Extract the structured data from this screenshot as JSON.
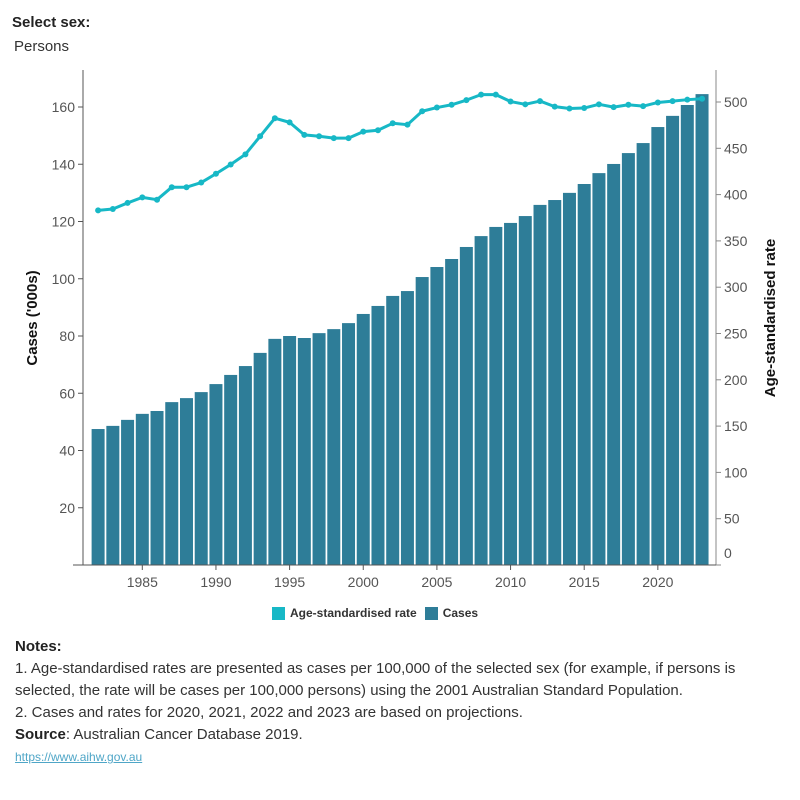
{
  "filter": {
    "label": "Select sex:",
    "value": "Persons"
  },
  "chart_data": {
    "type": "bar+line",
    "categories": [
      1982,
      1983,
      1984,
      1985,
      1986,
      1987,
      1988,
      1989,
      1990,
      1991,
      1992,
      1993,
      1994,
      1995,
      1996,
      1997,
      1998,
      1999,
      2000,
      2001,
      2002,
      2003,
      2004,
      2005,
      2006,
      2007,
      2008,
      2009,
      2010,
      2011,
      2012,
      2013,
      2014,
      2015,
      2016,
      2017,
      2018,
      2019,
      2020,
      2021,
      2022,
      2023
    ],
    "series": [
      {
        "name": "Cases",
        "type": "bar",
        "axis": "left",
        "color": "#2e7d98",
        "values": [
          47.5,
          48.6,
          50.7,
          52.8,
          53.8,
          56.9,
          58.3,
          60.4,
          63.2,
          66.4,
          69.5,
          74.1,
          79.0,
          80.0,
          79.3,
          81.0,
          82.4,
          84.5,
          87.7,
          90.5,
          94.0,
          95.7,
          100.6,
          104.1,
          106.9,
          111.1,
          114.9,
          118.1,
          119.5,
          121.9,
          125.8,
          127.5,
          130.0,
          133.1,
          136.9,
          140.1,
          143.9,
          147.4,
          153.0,
          156.9,
          160.7,
          164.5
        ]
      },
      {
        "name": "Age-standardised rate",
        "type": "line",
        "axis": "right",
        "color": "#17b8c6",
        "values": [
          383,
          384.5,
          391,
          397,
          394.5,
          408,
          408,
          413,
          422.5,
          432.5,
          443.5,
          463,
          482.5,
          478,
          464.5,
          463,
          461,
          461,
          468,
          469.5,
          477,
          475.5,
          490,
          494,
          497,
          502,
          508,
          508,
          500.5,
          497.5,
          501,
          495,
          493,
          493.5,
          497.5,
          494.5,
          497,
          495.5,
          499.5,
          501,
          502.5,
          503.5
        ]
      }
    ],
    "xlabel": "",
    "ylabel": "Cases ('000s)",
    "y2label": "Age-standardised rate",
    "xticks": [
      1985,
      1990,
      1995,
      2000,
      2005,
      2010,
      2015,
      2020
    ],
    "yticks": [
      20,
      40,
      60,
      80,
      100,
      120,
      140,
      160
    ],
    "y2ticks": [
      0,
      50,
      100,
      150,
      200,
      250,
      300,
      350,
      400,
      450,
      500
    ],
    "ylim": [
      0,
      172
    ],
    "y2lim": [
      0,
      533
    ],
    "grid": false,
    "legend": "bottom"
  },
  "legend": {
    "rate": "Age-standardised rate",
    "cases": "Cases"
  },
  "notes": {
    "title": "Notes:",
    "items": [
      "1. Age-standardised rates are presented as cases per 100,000 of the selected sex (for example, if persons is selected, the rate will be cases per 100,000 persons) using the 2001 Australian Standard Population.",
      "2. Cases and rates for 2020, 2021, 2022 and 2023 are based on projections."
    ],
    "source_label": "Source",
    "source_text": ": Australian Cancer Database 2019.",
    "link": "https://www.aihw.gov.au"
  }
}
